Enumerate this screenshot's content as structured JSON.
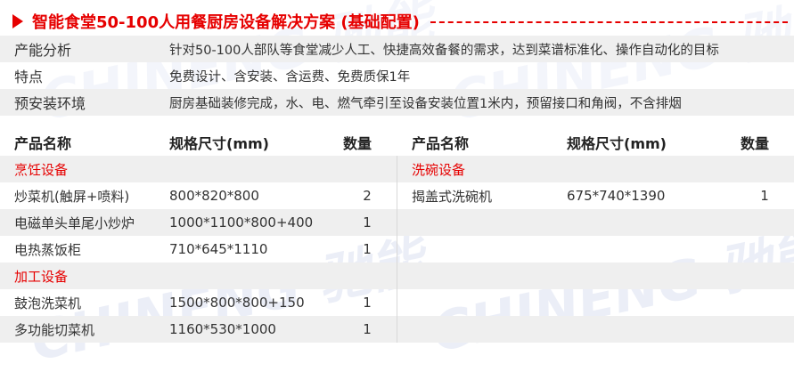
{
  "title": "智能食堂50-100人用餐厨房设备解决方案 (基础配置)",
  "info": [
    {
      "label": "产能分析",
      "value": "针对50-100人部队等食堂减少人工、快捷高效备餐的需求，达到菜谱标准化、操作自动化的目标"
    },
    {
      "label": "特点",
      "value": "免费设计、含安装、含运费、免费质保1年"
    },
    {
      "label": "预安装环境",
      "value": "厨房基础装修完成，水、电、燃气牵引至设备安装位置1米内，预留接口和角阀，不含排烟"
    }
  ],
  "headers": {
    "name": "产品名称",
    "spec": "规格尺寸(mm)",
    "qty": "数量"
  },
  "left": [
    {
      "category": "烹饪设备"
    },
    {
      "name": "炒菜机(触屏+喷料)",
      "spec": "800*820*800",
      "qty": "2"
    },
    {
      "name": "电磁单头单尾小炒炉",
      "spec": "1000*1100*800+400",
      "qty": "1"
    },
    {
      "name": "电热蒸饭柜",
      "spec": "710*645*1110",
      "qty": "1"
    },
    {
      "category": "加工设备"
    },
    {
      "name": "鼓泡洗菜机",
      "spec": "1500*800*800+150",
      "qty": "1"
    },
    {
      "name": "多功能切菜机",
      "spec": "1160*530*1000",
      "qty": "1"
    }
  ],
  "right": [
    {
      "category": "洗碗设备"
    },
    {
      "name": "揭盖式洗碗机",
      "spec": "675*740*1390",
      "qty": "1"
    },
    {},
    {},
    {},
    {},
    {}
  ],
  "watermark": "CHINENG 驰能",
  "colors": {
    "accent": "#e60000",
    "stripe": "#efefef"
  }
}
